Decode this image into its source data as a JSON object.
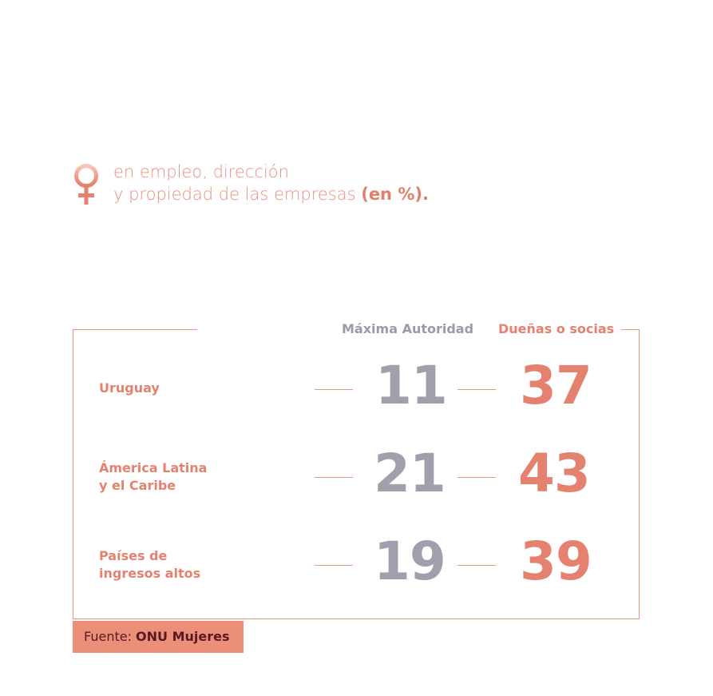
{
  "header": {
    "icon": "venus-icon",
    "line1": "en empleo, dirección",
    "line2_plain": "y propiedad de las empresas ",
    "line2_emphasis": "(en %)."
  },
  "columns": {
    "max_authority": "Máxima Autoridad",
    "owners": "Dueñas o socias"
  },
  "rows": [
    {
      "label_line1": "Uruguay",
      "label_line2": "",
      "max_authority": "11",
      "owners": "37"
    },
    {
      "label_line1": "Ámerica Latina",
      "label_line2": "y el Caribe",
      "max_authority": "21",
      "owners": "43"
    },
    {
      "label_line1": "Países de",
      "label_line2": "ingresos altos",
      "max_authority": "19",
      "owners": "39"
    }
  ],
  "source": {
    "prefix": "Fuente: ",
    "name": "ONU Mujeres"
  },
  "colors": {
    "accent": "#e4826f",
    "grey": "#9fa0ac",
    "source_bg": "#ec8f78",
    "source_text": "#5a1726"
  },
  "chart_data": {
    "type": "table",
    "title": "en empleo, dirección y propiedad de las empresas (en %).",
    "columns": [
      "Máxima Autoridad",
      "Dueñas o socias"
    ],
    "categories": [
      "Uruguay",
      "Ámerica Latina y el Caribe",
      "Países de ingresos altos"
    ],
    "series": [
      {
        "name": "Máxima Autoridad",
        "values": [
          11,
          21,
          19
        ]
      },
      {
        "name": "Dueñas o socias",
        "values": [
          37,
          43,
          39
        ]
      }
    ],
    "source": "Fuente: ONU Mujeres"
  }
}
